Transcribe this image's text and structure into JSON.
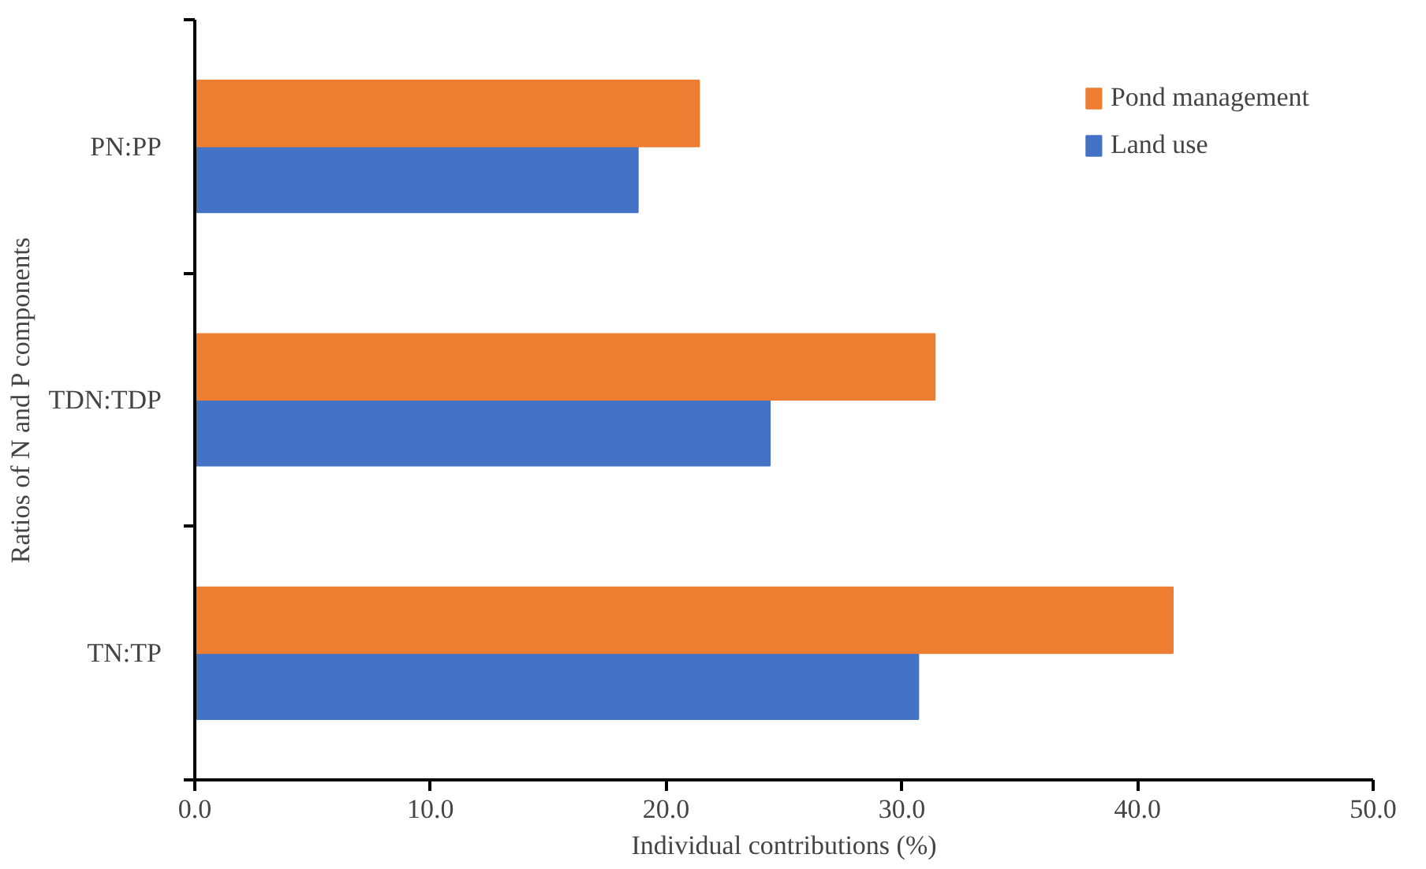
{
  "chart_data": {
    "type": "bar",
    "orientation": "horizontal",
    "xlabel": "Individual contributions (%)",
    "ylabel": "Ratios of N and P components",
    "categories": [
      "PN:PP",
      "TDN:TDP",
      "TN:TP"
    ],
    "series": [
      {
        "name": "Land use",
        "color": "#4472c4",
        "values": [
          18.8,
          24.4,
          30.7
        ]
      },
      {
        "name": "Pond management",
        "color": "#ed7d31",
        "values": [
          21.4,
          31.4,
          41.5
        ]
      }
    ],
    "xlim": [
      0,
      50
    ],
    "xticks": [
      {
        "value": 0,
        "label": "0.0"
      },
      {
        "value": 10,
        "label": "10.0"
      },
      {
        "value": 20,
        "label": "20.0"
      },
      {
        "value": 30,
        "label": "30.0"
      },
      {
        "value": 40,
        "label": "40.0"
      },
      {
        "value": 50,
        "label": "50.0"
      }
    ],
    "grid": false,
    "legend": "top right"
  }
}
